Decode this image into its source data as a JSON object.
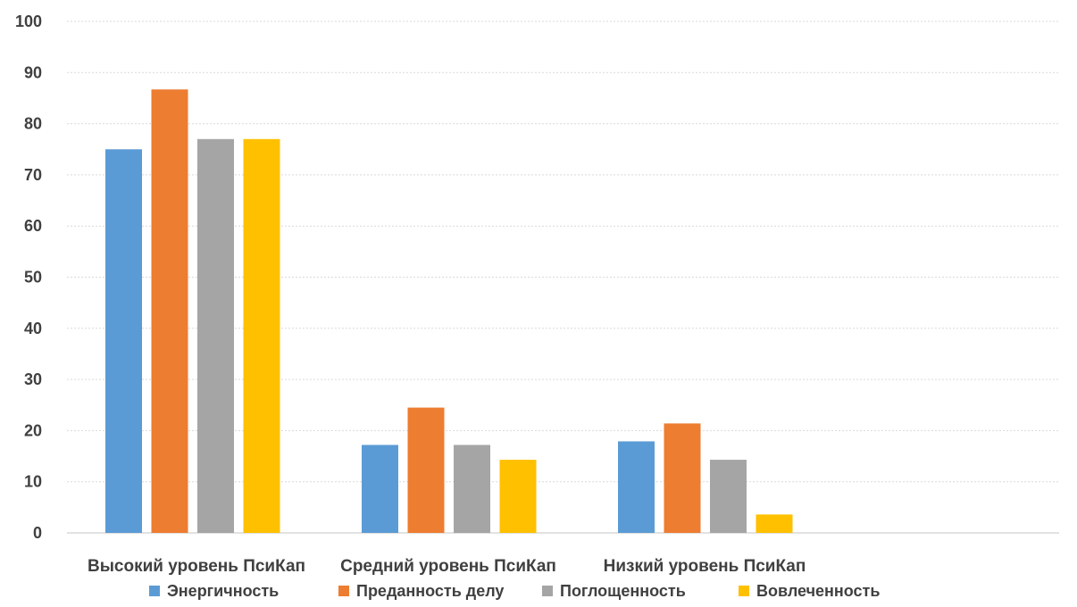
{
  "chart_data": {
    "type": "bar",
    "categories": [
      "Высокий уровень ПсиКап",
      "Средний уровень ПсиКап",
      "Низкий уровень ПсиКап"
    ],
    "series": [
      {
        "name": "Энергичность",
        "color": "#5b9bd5",
        "values": [
          75,
          17.2,
          17.9
        ]
      },
      {
        "name": "Преданность делу",
        "color": "#ed7d31",
        "values": [
          86.7,
          24.5,
          21.4
        ]
      },
      {
        "name": "Поглощенность",
        "color": "#a5a5a5",
        "values": [
          77,
          17.2,
          14.3
        ]
      },
      {
        "name": "Вовлеченность",
        "color": "#ffc000",
        "values": [
          77,
          14.3,
          3.6
        ]
      }
    ],
    "yticks": [
      "0",
      "10",
      "20",
      "30",
      "40",
      "50",
      "60",
      "70",
      "80",
      "90",
      "100"
    ],
    "ylim": [
      0,
      100
    ],
    "grid": true,
    "legend_position": "bottom",
    "title": "",
    "xlabel": "",
    "ylabel": ""
  }
}
